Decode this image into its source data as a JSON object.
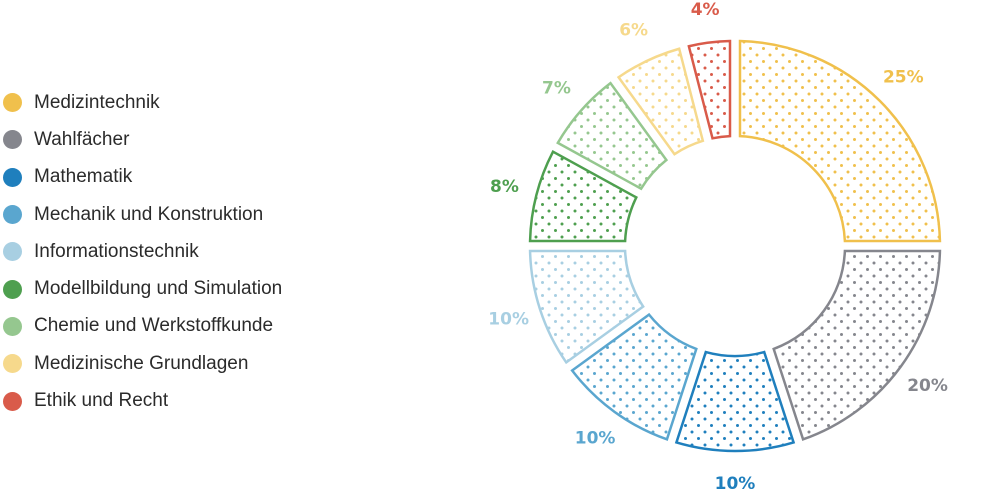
{
  "chart_data": {
    "type": "pie",
    "variant": "donut",
    "title": "",
    "legend_position": "left",
    "slices": [
      {
        "name": "Medizintechnik",
        "value": 25,
        "label": "25%",
        "color": "#f0c04c"
      },
      {
        "name": "Wahlfächer",
        "value": 20,
        "label": "20%",
        "color": "#85868d"
      },
      {
        "name": "Mathematik",
        "value": 10,
        "label": "10%",
        "color": "#1f7fbd"
      },
      {
        "name": "Mechanik und Konstruktion",
        "value": 10,
        "label": "10%",
        "color": "#5aa6cf"
      },
      {
        "name": "Informationstechnik",
        "value": 10,
        "label": "10%",
        "color": "#a8cfe2"
      },
      {
        "name": "Modellbildung und Simulation",
        "value": 8,
        "label": "8%",
        "color": "#4e9f4f"
      },
      {
        "name": "Chemie und Werkstoffkunde",
        "value": 7,
        "label": "7%",
        "color": "#95c78f"
      },
      {
        "name": "Medizinische Grundlagen",
        "value": 6,
        "label": "6%",
        "color": "#f6d98c"
      },
      {
        "name": "Ethik und Recht",
        "value": 4,
        "label": "4%",
        "color": "#d95b4a"
      }
    ]
  }
}
